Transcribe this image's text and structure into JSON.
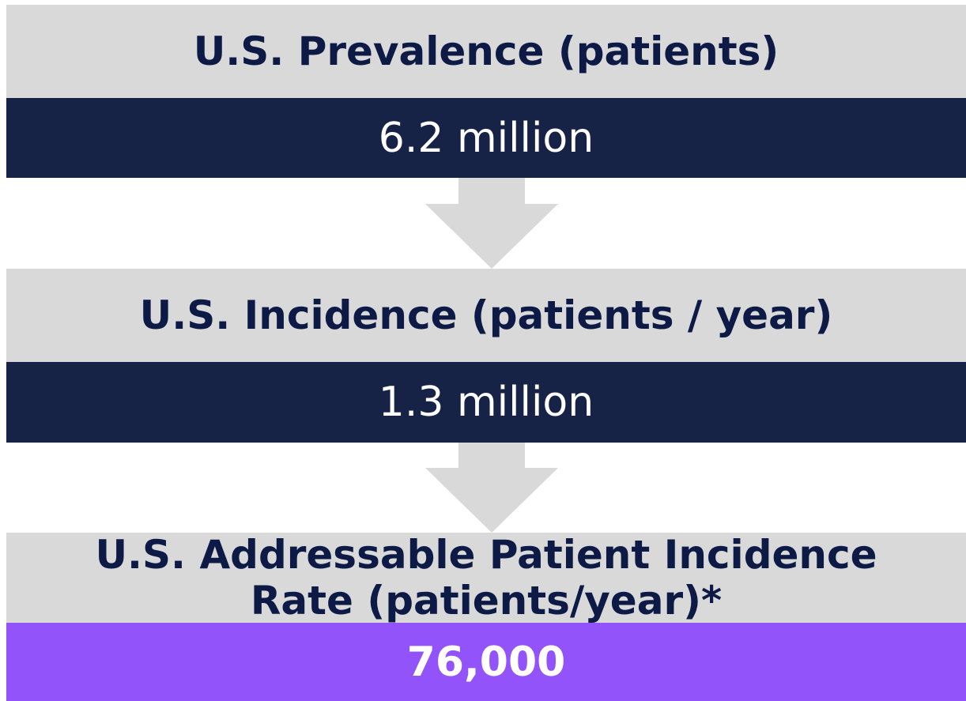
{
  "stages": [
    {
      "label_lines": [
        "U.S. Prevalence (patients)"
      ],
      "value": "6.2 million"
    },
    {
      "label_lines": [
        "U.S. Incidence (patients / year)"
      ],
      "value": "1.3 million"
    },
    {
      "label_lines": [
        "U.S. Addressable Patient Incidence",
        "Rate (patients/year)*"
      ],
      "value": "76,000"
    }
  ]
}
